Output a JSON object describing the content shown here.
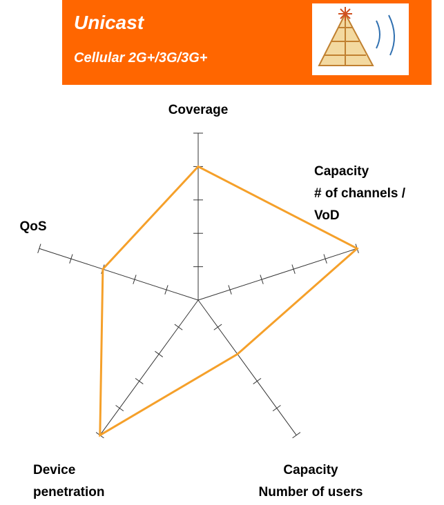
{
  "chart_data": {
    "type": "radar",
    "title": "Unicast",
    "subtitle": "Cellular 2G+/3G/3G+",
    "categories": [
      [
        "Coverage"
      ],
      [
        "Capacity",
        "# of channels /",
        "VoD"
      ],
      [
        "Capacity",
        "Number of users"
      ],
      [
        "Device",
        "penetration"
      ],
      [
        "QoS"
      ]
    ],
    "values": [
      4,
      5,
      2,
      5,
      3
    ],
    "color": "#f5a02a",
    "rlim": [
      0,
      5
    ],
    "rticks": [
      1,
      2,
      3,
      4,
      5
    ]
  }
}
